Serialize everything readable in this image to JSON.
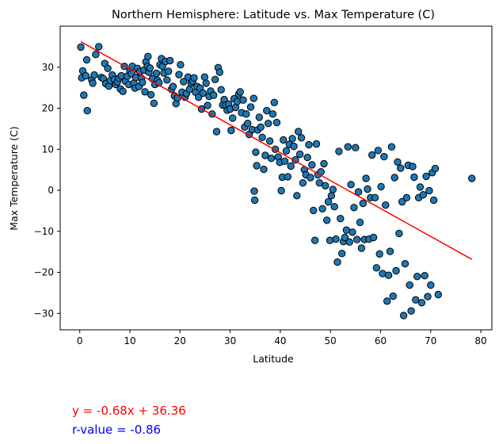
{
  "annotations": {
    "equation": "y = -0.68x + 36.36",
    "rvalue": "r-value = -0.86"
  },
  "chart_data": {
    "type": "scatter",
    "title": "Northern Hemisphere: Latitude vs. Max Temperature (C)",
    "xlabel": "Latitude",
    "ylabel": "Max Temperature (C)",
    "xlim": [
      -3.9,
      82.2
    ],
    "ylim": [
      -34,
      40
    ],
    "xticks": [
      0,
      10,
      20,
      30,
      40,
      50,
      60,
      70,
      80
    ],
    "yticks": [
      -30,
      -20,
      -10,
      0,
      10,
      20,
      30
    ],
    "grid": false,
    "legend": "none",
    "colors": {
      "points": "#1f77b4",
      "point_edge": "#000000",
      "regression": "#ff0000"
    },
    "regression": {
      "slope": -0.68,
      "intercept": 36.36,
      "x_range": [
        0.2,
        78.2
      ]
    },
    "points": [
      [
        0.2,
        34.9
      ],
      [
        0.4,
        27.4
      ],
      [
        0.6,
        29.1
      ],
      [
        0.8,
        23.2
      ],
      [
        1.2,
        27.9
      ],
      [
        1.4,
        31.8
      ],
      [
        1.5,
        19.4
      ],
      [
        2.4,
        26.9
      ],
      [
        2.6,
        26.1
      ],
      [
        2.9,
        28.1
      ],
      [
        3.2,
        33.1
      ],
      [
        3.8,
        35.0
      ],
      [
        4.3,
        27.5
      ],
      [
        4.7,
        27.2
      ],
      [
        5.0,
        30.9
      ],
      [
        5.2,
        26.0
      ],
      [
        5.6,
        29.7
      ],
      [
        5.8,
        25.4
      ],
      [
        6.1,
        26.7
      ],
      [
        6.5,
        28.1
      ],
      [
        6.9,
        27.0
      ],
      [
        7.2,
        25.8
      ],
      [
        7.5,
        26.4
      ],
      [
        7.8,
        27.3
      ],
      [
        8.1,
        24.7
      ],
      [
        8.3,
        27.9
      ],
      [
        8.6,
        24.1
      ],
      [
        8.9,
        30.2
      ],
      [
        9.1,
        26.6
      ],
      [
        9.5,
        27.8
      ],
      [
        9.8,
        25.8
      ],
      [
        10.0,
        29.1
      ],
      [
        10.3,
        28.4
      ],
      [
        10.5,
        30.2
      ],
      [
        10.8,
        26.1
      ],
      [
        11.0,
        24.9
      ],
      [
        11.2,
        27.5
      ],
      [
        11.5,
        29.7
      ],
      [
        11.8,
        25.3
      ],
      [
        12.0,
        28.9
      ],
      [
        12.3,
        27.3
      ],
      [
        12.5,
        26.3
      ],
      [
        12.8,
        29.3
      ],
      [
        13.0,
        24.0
      ],
      [
        13.2,
        31.3
      ],
      [
        13.5,
        30.2
      ],
      [
        13.6,
        32.6
      ],
      [
        13.8,
        28.8
      ],
      [
        14.0,
        29.8
      ],
      [
        14.2,
        23.3
      ],
      [
        14.5,
        27.2
      ],
      [
        14.8,
        21.2
      ],
      [
        15.0,
        25.8
      ],
      [
        15.3,
        28.5
      ],
      [
        15.5,
        26.8
      ],
      [
        15.8,
        26.2
      ],
      [
        16.0,
        30.6
      ],
      [
        16.3,
        32.1
      ],
      [
        16.5,
        30.2
      ],
      [
        16.8,
        28.6
      ],
      [
        17.1,
        31.4
      ],
      [
        17.4,
        26.9
      ],
      [
        17.7,
        29.0
      ],
      [
        18.0,
        31.6
      ],
      [
        18.3,
        24.6
      ],
      [
        18.6,
        25.3
      ],
      [
        18.9,
        23.0
      ],
      [
        19.2,
        21.1
      ],
      [
        19.5,
        22.5
      ],
      [
        19.8,
        28.2
      ],
      [
        20.1,
        30.6
      ],
      [
        20.4,
        23.9
      ],
      [
        20.7,
        26.5
      ],
      [
        21.0,
        22.7
      ],
      [
        21.3,
        23.6
      ],
      [
        21.6,
        27.6
      ],
      [
        21.9,
        24.6
      ],
      [
        22.2,
        26.1
      ],
      [
        22.5,
        26.6
      ],
      [
        22.8,
        27.4
      ],
      [
        23.1,
        23.9
      ],
      [
        23.4,
        25.3
      ],
      [
        23.7,
        22.7
      ],
      [
        24.0,
        24.9
      ],
      [
        24.3,
        19.8
      ],
      [
        24.6,
        23.7
      ],
      [
        24.9,
        27.6
      ],
      [
        25.2,
        26.1
      ],
      [
        25.5,
        20.7
      ],
      [
        25.8,
        22.9
      ],
      [
        26.1,
        24.2
      ],
      [
        26.4,
        18.6
      ],
      [
        26.7,
        23.2
      ],
      [
        27.0,
        27.0
      ],
      [
        27.3,
        14.3
      ],
      [
        27.6,
        29.9
      ],
      [
        27.9,
        28.8
      ],
      [
        28.2,
        24.5
      ],
      [
        28.5,
        20.8
      ],
      [
        28.8,
        22.1
      ],
      [
        29.1,
        20.8
      ],
      [
        29.4,
        19.5
      ],
      [
        29.7,
        21.0
      ],
      [
        30.0,
        19.8
      ],
      [
        30.2,
        14.6
      ],
      [
        30.5,
        17.6
      ],
      [
        30.8,
        22.3
      ],
      [
        31.1,
        20.2
      ],
      [
        31.4,
        21.6
      ],
      [
        31.7,
        23.4
      ],
      [
        32.0,
        24.0
      ],
      [
        32.3,
        18.9
      ],
      [
        32.6,
        22.0
      ],
      [
        32.9,
        15.4
      ],
      [
        33.2,
        18.6
      ],
      [
        33.5,
        16.3
      ],
      [
        33.8,
        13.6
      ],
      [
        34.1,
        20.3
      ],
      [
        34.4,
        14.8
      ],
      [
        34.7,
        22.4
      ],
      [
        34.8,
        -0.2
      ],
      [
        34.9,
        -2.4
      ],
      [
        35.1,
        9.3
      ],
      [
        35.3,
        6.0
      ],
      [
        35.5,
        14.7
      ],
      [
        35.8,
        17.8
      ],
      [
        36.1,
        15.4
      ],
      [
        36.4,
        12.9
      ],
      [
        36.7,
        5.1
      ],
      [
        37.0,
        8.5
      ],
      [
        37.3,
        19.4
      ],
      [
        37.6,
        16.3
      ],
      [
        37.9,
        12.0
      ],
      [
        38.2,
        7.8
      ],
      [
        38.5,
        18.6
      ],
      [
        38.8,
        21.4
      ],
      [
        39.0,
        10.0
      ],
      [
        39.3,
        16.5
      ],
      [
        39.6,
        8.1
      ],
      [
        39.9,
        6.8
      ],
      [
        40.2,
        -0.1
      ],
      [
        40.4,
        3.2
      ],
      [
        40.6,
        12.3
      ],
      [
        40.9,
        7.1
      ],
      [
        41.2,
        9.6
      ],
      [
        41.5,
        3.3
      ],
      [
        41.8,
        11.2
      ],
      [
        42.1,
        5.9
      ],
      [
        42.4,
        12.6
      ],
      [
        42.7,
        10.7
      ],
      [
        43.0,
        7.4
      ],
      [
        43.3,
        -1.3
      ],
      [
        43.6,
        14.3
      ],
      [
        43.9,
        8.8
      ],
      [
        44.2,
        12.8
      ],
      [
        44.5,
        1.8
      ],
      [
        44.8,
        5.0
      ],
      [
        45.1,
        3.8
      ],
      [
        45.4,
        8.0
      ],
      [
        45.7,
        11.1
      ],
      [
        46.0,
        3.1
      ],
      [
        46.3,
        6.2
      ],
      [
        46.6,
        -4.9
      ],
      [
        46.9,
        -12.2
      ],
      [
        47.2,
        11.3
      ],
      [
        47.5,
        3.8
      ],
      [
        47.8,
        1.8
      ],
      [
        48.1,
        4.5
      ],
      [
        48.4,
        -4.5
      ],
      [
        48.7,
        6.5
      ],
      [
        49.0,
        1.1
      ],
      [
        49.3,
        -7.3
      ],
      [
        49.6,
        -2.8
      ],
      [
        49.9,
        -12.2
      ],
      [
        50.2,
        -1.3
      ],
      [
        50.5,
        0.2
      ],
      [
        50.8,
        -4.0
      ],
      [
        51.1,
        -11.9
      ],
      [
        51.4,
        -17.5
      ],
      [
        51.7,
        9.5
      ],
      [
        52.0,
        -6.9
      ],
      [
        52.3,
        -15.4
      ],
      [
        52.6,
        -12.5
      ],
      [
        52.9,
        -11.5
      ],
      [
        53.2,
        -9.7
      ],
      [
        53.5,
        10.6
      ],
      [
        53.8,
        -12.6
      ],
      [
        54.1,
        1.4
      ],
      [
        54.4,
        -10.2
      ],
      [
        54.7,
        -4.2
      ],
      [
        55.0,
        10.4
      ],
      [
        55.3,
        -12.0
      ],
      [
        55.6,
        -0.4
      ],
      [
        55.9,
        -7.8
      ],
      [
        56.2,
        -14.1
      ],
      [
        56.5,
        -3.2
      ],
      [
        56.8,
        -12.0
      ],
      [
        57.1,
        2.9
      ],
      [
        57.4,
        0.3
      ],
      [
        57.7,
        -11.9
      ],
      [
        58.0,
        -1.8
      ],
      [
        58.3,
        8.6
      ],
      [
        58.6,
        -11.5
      ],
      [
        58.9,
        -1.8
      ],
      [
        59.2,
        -18.9
      ],
      [
        59.5,
        9.7
      ],
      [
        59.8,
        -15.5
      ],
      [
        60.1,
        0.9
      ],
      [
        60.4,
        -20.3
      ],
      [
        60.7,
        8.2
      ],
      [
        61.0,
        -3.6
      ],
      [
        61.3,
        -27.0
      ],
      [
        61.6,
        -20.7
      ],
      [
        61.9,
        -14.9
      ],
      [
        62.2,
        10.6
      ],
      [
        62.5,
        -25.8
      ],
      [
        62.8,
        3.1
      ],
      [
        63.1,
        -19.6
      ],
      [
        63.4,
        6.9
      ],
      [
        63.7,
        -10.5
      ],
      [
        64.0,
        5.4
      ],
      [
        64.3,
        -2.8
      ],
      [
        64.6,
        -30.5
      ],
      [
        64.9,
        -17.9
      ],
      [
        65.2,
        -1.8
      ],
      [
        65.5,
        6.1
      ],
      [
        65.8,
        -23.1
      ],
      [
        66.1,
        -29.4
      ],
      [
        66.4,
        5.8
      ],
      [
        66.7,
        3.2
      ],
      [
        67.0,
        -26.7
      ],
      [
        67.3,
        -21.0
      ],
      [
        67.6,
        -1.8
      ],
      [
        67.9,
        0.8
      ],
      [
        68.2,
        -27.4
      ],
      [
        68.5,
        -1.1
      ],
      [
        68.8,
        -20.8
      ],
      [
        69.1,
        3.4
      ],
      [
        69.4,
        -25.9
      ],
      [
        69.7,
        -0.1
      ],
      [
        70.0,
        -23.1
      ],
      [
        70.3,
        4.3
      ],
      [
        70.6,
        -2.4
      ],
      [
        70.9,
        5.3
      ],
      [
        71.5,
        -25.4
      ],
      [
        78.2,
        2.9
      ]
    ]
  }
}
